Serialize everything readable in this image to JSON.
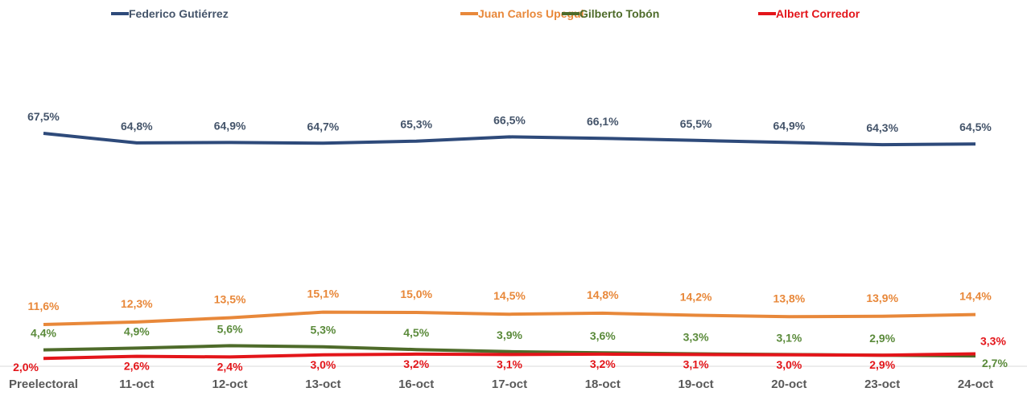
{
  "chart_data": {
    "type": "line",
    "title": "",
    "xlabel": "",
    "ylabel": "",
    "grid": false,
    "legend_position": "top",
    "categories": [
      "Preelectoral",
      "11-oct",
      "12-oct",
      "13-oct",
      "16-oct",
      "17-oct",
      "18-oct",
      "19-oct",
      "20-oct",
      "23-oct",
      "24-oct"
    ],
    "series": [
      {
        "name": "Federico Gutiérrez",
        "color": "#2E4A7A",
        "label_color": "#44546A",
        "values": [
          67.5,
          64.8,
          64.9,
          64.7,
          65.3,
          66.5,
          66.1,
          65.5,
          64.9,
          64.3,
          64.5
        ],
        "labels": [
          "67,5%",
          "64,8%",
          "64,9%",
          "64,7%",
          "65,3%",
          "66,5%",
          "66,1%",
          "65,5%",
          "64,9%",
          "64,3%",
          "64,5%"
        ]
      },
      {
        "name": "Juan Carlos Upegui",
        "color": "#E8883A",
        "label_color": "#E8883A",
        "values": [
          11.6,
          12.3,
          13.5,
          15.1,
          15.0,
          14.5,
          14.8,
          14.2,
          13.8,
          13.9,
          14.4
        ],
        "labels": [
          "11,6%",
          "12,3%",
          "13,5%",
          "15,1%",
          "15,0%",
          "14,5%",
          "14,8%",
          "14,2%",
          "13,8%",
          "13,9%",
          "14,4%"
        ]
      },
      {
        "name": "Gilberto Tobón",
        "color": "#4E6B2A",
        "label_color": "#5A8A3A",
        "values": [
          4.4,
          4.9,
          5.6,
          5.3,
          4.5,
          3.9,
          3.6,
          3.3,
          3.1,
          2.9,
          2.7
        ],
        "labels": [
          "4,4%",
          "4,9%",
          "5,6%",
          "5,3%",
          "4,5%",
          "3,9%",
          "3,6%",
          "3,3%",
          "3,1%",
          "2,9%",
          "2,7%"
        ]
      },
      {
        "name": "Albert Corredor",
        "color": "#E3151A",
        "label_color": "#E3151A",
        "values": [
          2.0,
          2.6,
          2.4,
          3.0,
          3.2,
          3.1,
          3.2,
          3.1,
          3.0,
          2.9,
          3.3
        ],
        "labels": [
          "2,0%",
          "2,6%",
          "2,4%",
          "3,0%",
          "3,2%",
          "3,1%",
          "3,2%",
          "3,1%",
          "3,0%",
          "2,9%",
          "3,3%"
        ]
      }
    ]
  }
}
